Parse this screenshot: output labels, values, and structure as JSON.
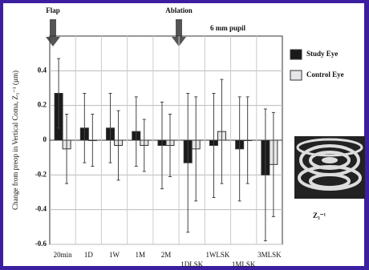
{
  "chart_data": {
    "type": "bar",
    "title": "6 mm pupil",
    "y_label": "Change from preop in Vertical Coma, Z₃⁻¹ (µm)",
    "annotations": [
      "Flap",
      "Ablation"
    ],
    "categories": [
      "20min",
      "1D",
      "1W",
      "1M",
      "2M",
      "1DLSK",
      "1WLSK",
      "1MLSK",
      "3MLSK"
    ],
    "series": [
      {
        "name": "Study Eye",
        "color": "#1a1a1a",
        "values": [
          0.27,
          0.07,
          0.07,
          0.05,
          -0.03,
          -0.13,
          -0.03,
          -0.05,
          -0.2
        ],
        "errors": [
          0.2,
          0.2,
          0.2,
          0.2,
          0.25,
          0.4,
          0.3,
          0.3,
          0.38
        ]
      },
      {
        "name": "Control Eye",
        "color": "#e6e6ea",
        "values": [
          -0.05,
          0,
          -0.03,
          -0.03,
          -0.03,
          -0.05,
          0.05,
          0,
          -0.14
        ],
        "errors": [
          0.2,
          0.15,
          0.2,
          0.15,
          0.18,
          0.3,
          0.3,
          0.25,
          0.3
        ]
      }
    ],
    "ylim": [
      -0.6,
      0.6
    ],
    "yticks": [
      -0.6,
      -0.4,
      -0.2,
      0,
      0.2,
      0.4
    ],
    "grid": true,
    "inset_label": "Z₃⁻¹"
  }
}
